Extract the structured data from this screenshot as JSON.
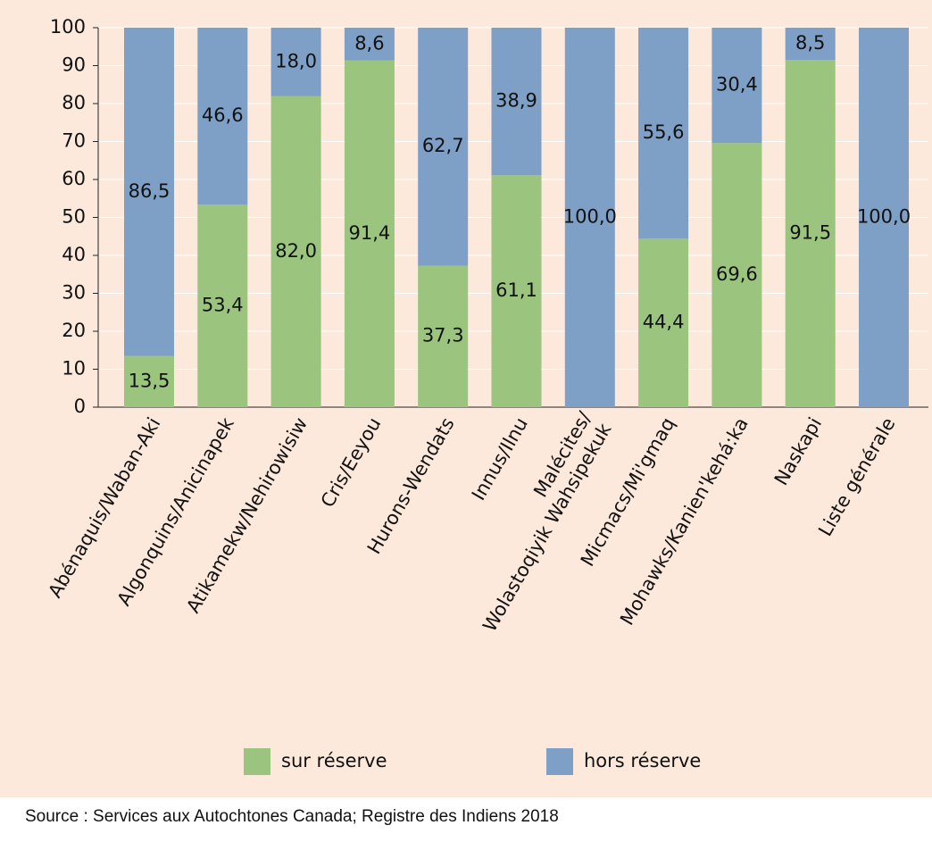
{
  "chart_data": {
    "type": "stacked_bar",
    "categories": [
      "Abénaquis/Waban-Aki",
      "Algonquins/Anicinapek",
      "Atikamekw/Nehirowisiw",
      "Cris/Eeyou",
      "Hurons-Wendats",
      "Innus/Ilnu",
      "Malécites/\nWolastoqiyik Wahsipekuk",
      "Micmacs/Mi'gmaq",
      "Mohawks/Kanien'kehá:ka",
      "Naskapi",
      "Liste générale"
    ],
    "series": [
      {
        "name": "sur réserve",
        "color": "#9bc47f",
        "values": [
          13.5,
          53.4,
          82.0,
          91.4,
          37.3,
          61.1,
          0,
          44.4,
          69.6,
          91.5,
          0
        ],
        "value_labels": [
          "13,5",
          "53,4",
          "82,0",
          "91,4",
          "37,3",
          "61,1",
          null,
          "44,4",
          "69,6",
          "91,5",
          null
        ]
      },
      {
        "name": "hors réserve",
        "color": "#7e9fc6",
        "values": [
          86.5,
          46.6,
          18.0,
          8.6,
          62.7,
          38.9,
          100.0,
          55.6,
          30.4,
          8.5,
          100.0
        ],
        "value_labels": [
          "86,5",
          "46,6",
          "18,0",
          "8,6",
          "62,7",
          "38,9",
          "100,0",
          "55,6",
          "30,4",
          "8,5",
          "100,0"
        ]
      }
    ],
    "ylim": [
      0,
      100
    ],
    "yticks": [
      0,
      10,
      20,
      30,
      40,
      50,
      60,
      70,
      80,
      90,
      100
    ],
    "grid": true,
    "source": "Source : Services aux Autochtones Canada; Registre des Indiens 2018"
  }
}
